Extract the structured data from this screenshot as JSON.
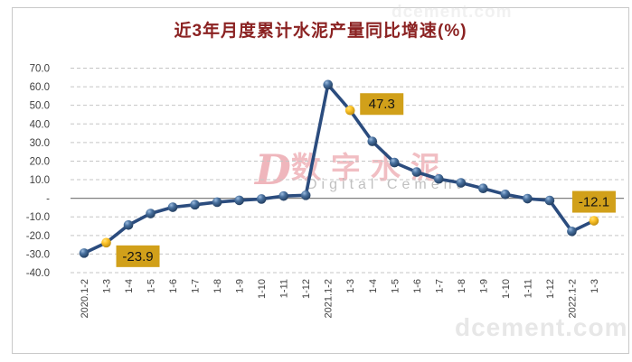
{
  "chart_data": {
    "type": "line",
    "title": "近3年月度累计水泥产量同比增速(%)",
    "title_color": "#8B2222",
    "categories": [
      "2020.1-2",
      "1-3",
      "1-4",
      "1-5",
      "1-6",
      "1-7",
      "1-8",
      "1-9",
      "1-10",
      "1-11",
      "1-12",
      "2021.1-2",
      "1-3",
      "1-4",
      "1-5",
      "1-6",
      "1-7",
      "1-8",
      "1-9",
      "1-10",
      "1-11",
      "1-12",
      "2022.1-2",
      "1-3"
    ],
    "values": [
      -29.5,
      -23.9,
      -14.4,
      -8.2,
      -4.8,
      -3.5,
      -2.1,
      -1.1,
      -0.4,
      1.2,
      1.6,
      61.1,
      47.3,
      30.6,
      19.2,
      14.1,
      10.4,
      8.3,
      5.3,
      2.1,
      -0.2,
      -1.2,
      -17.8,
      -12.1
    ],
    "data_labels": [
      {
        "index": 1,
        "text": "-23.9"
      },
      {
        "index": 12,
        "text": "47.3"
      },
      {
        "index": 23,
        "text": "-12.1"
      }
    ],
    "ylim": [
      -40,
      70
    ],
    "ytick_step": 10,
    "ytick_labels": [
      "70.0",
      "60.0",
      "50.0",
      "40.0",
      "30.0",
      "20.0",
      "10.0",
      "-",
      "-10.0",
      "-20.0",
      "-30.0",
      "-40.0"
    ],
    "xlabel": "",
    "ylabel": "",
    "grid": "horizontal-dashed",
    "legend": "none",
    "series_color": "#2B4C7E",
    "marker_color": "#2E5384",
    "highlight_marker_color": "#FFC42B",
    "label_box_color": "#D1A01A",
    "label_text_color": "#141414",
    "axis_text_color": "#404040",
    "gridline_color": "#C5C5C5",
    "zero_line_color": "#808080"
  },
  "watermark": {
    "logo": "D",
    "cn": "数字水泥",
    "en": "Digital Cement",
    "site": "dcement.com"
  }
}
